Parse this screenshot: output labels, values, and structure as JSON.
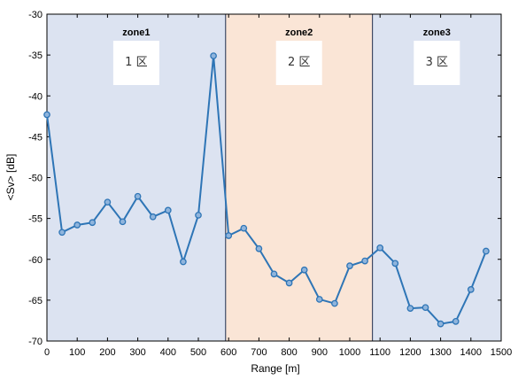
{
  "chart_data": {
    "type": "line",
    "xlabel": "Range [m]",
    "ylabel": "<Sv> [dB]",
    "xlim": [
      0,
      1500
    ],
    "ylim": [
      -70,
      -30
    ],
    "xticks": [
      0,
      100,
      200,
      300,
      400,
      500,
      600,
      700,
      800,
      900,
      1000,
      1100,
      1200,
      1300,
      1400,
      1500
    ],
    "yticks": [
      -30,
      -35,
      -40,
      -45,
      -50,
      -55,
      -60,
      -65,
      -70
    ],
    "grid": false,
    "legend": "none",
    "zones": [
      {
        "name": "zone1",
        "label": "1 区",
        "x_start": 0,
        "x_end": 590,
        "color": "#dce3f1"
      },
      {
        "name": "zone2",
        "label": "2 区",
        "x_start": 590,
        "x_end": 1075,
        "color": "#fae5d6"
      },
      {
        "name": "zone3",
        "label": "3 区",
        "x_start": 1075,
        "x_end": 1500,
        "color": "#dce3f1"
      }
    ],
    "series": [
      {
        "color": "#2e75b6",
        "x": [
          0,
          50,
          100,
          150,
          200,
          250,
          300,
          350,
          400,
          450,
          500,
          550,
          600,
          650,
          700,
          750,
          800,
          850,
          900,
          950,
          1000,
          1050,
          1100,
          1150,
          1200,
          1250,
          1300,
          1350,
          1400,
          1450
        ],
        "y": [
          -42.3,
          -56.7,
          -55.8,
          -55.5,
          -53,
          -55.4,
          -52.3,
          -54.8,
          -54,
          -60.3,
          -54.6,
          -35.1,
          -57.1,
          -56.2,
          -58.7,
          -61.8,
          -62.9,
          -61.3,
          -64.9,
          -65.4,
          -60.8,
          -60.2,
          -58.6,
          -60.5,
          -66,
          -65.9,
          -67.9,
          -67.6,
          -63.7,
          -59
        ]
      }
    ]
  }
}
